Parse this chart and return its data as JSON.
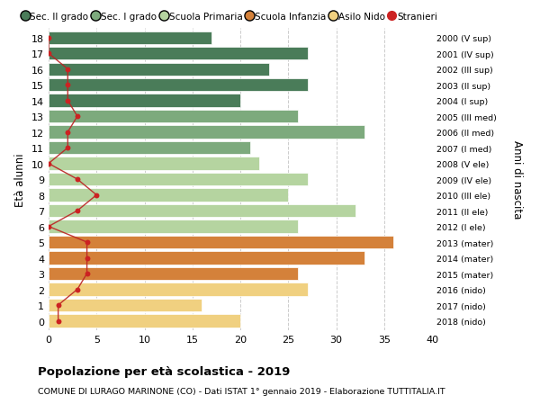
{
  "ages": [
    18,
    17,
    16,
    15,
    14,
    13,
    12,
    11,
    10,
    9,
    8,
    7,
    6,
    5,
    4,
    3,
    2,
    1,
    0
  ],
  "right_labels": [
    "2000 (V sup)",
    "2001 (IV sup)",
    "2002 (III sup)",
    "2003 (II sup)",
    "2004 (I sup)",
    "2005 (III med)",
    "2006 (II med)",
    "2007 (I med)",
    "2008 (V ele)",
    "2009 (IV ele)",
    "2010 (III ele)",
    "2011 (II ele)",
    "2012 (I ele)",
    "2013 (mater)",
    "2014 (mater)",
    "2015 (mater)",
    "2016 (nido)",
    "2017 (nido)",
    "2018 (nido)"
  ],
  "bar_values": [
    17,
    27,
    23,
    27,
    20,
    26,
    33,
    21,
    22,
    27,
    25,
    32,
    26,
    36,
    33,
    26,
    27,
    16,
    20
  ],
  "bar_colors": [
    "#4a7c59",
    "#4a7c59",
    "#4a7c59",
    "#4a7c59",
    "#4a7c59",
    "#7daa7d",
    "#7daa7d",
    "#7daa7d",
    "#b5d4a0",
    "#b5d4a0",
    "#b5d4a0",
    "#b5d4a0",
    "#b5d4a0",
    "#d4813a",
    "#d4813a",
    "#d4813a",
    "#f0d080",
    "#f0d080",
    "#f0d080"
  ],
  "stranieri_values": [
    0,
    0,
    2,
    2,
    2,
    3,
    2,
    2,
    0,
    3,
    5,
    3,
    0,
    4,
    4,
    4,
    3,
    1,
    1
  ],
  "title": "Popolazione per età scolastica - 2019",
  "subtitle": "COMUNE DI LURAGO MARINONE (CO) - Dati ISTAT 1° gennaio 2019 - Elaborazione TUTTITALIA.IT",
  "ylabel": "Età alunni",
  "right_ylabel": "Anni di nascita",
  "xlim": [
    0,
    40
  ],
  "xticks": [
    0,
    5,
    10,
    15,
    20,
    25,
    30,
    35,
    40
  ],
  "legend_items": [
    {
      "label": "Sec. II grado",
      "color": "#4a7c59"
    },
    {
      "label": "Sec. I grado",
      "color": "#7daa7d"
    },
    {
      "label": "Scuola Primaria",
      "color": "#b5d4a0"
    },
    {
      "label": "Scuola Infanzia",
      "color": "#d4813a"
    },
    {
      "label": "Asilo Nido",
      "color": "#f0d080"
    },
    {
      "label": "Stranieri",
      "color": "#cc2222"
    }
  ],
  "bar_height": 0.82,
  "background_color": "#ffffff",
  "grid_color": "#cccccc",
  "stranieri_line_color": "#bb2222",
  "stranieri_dot_color": "#cc2222"
}
